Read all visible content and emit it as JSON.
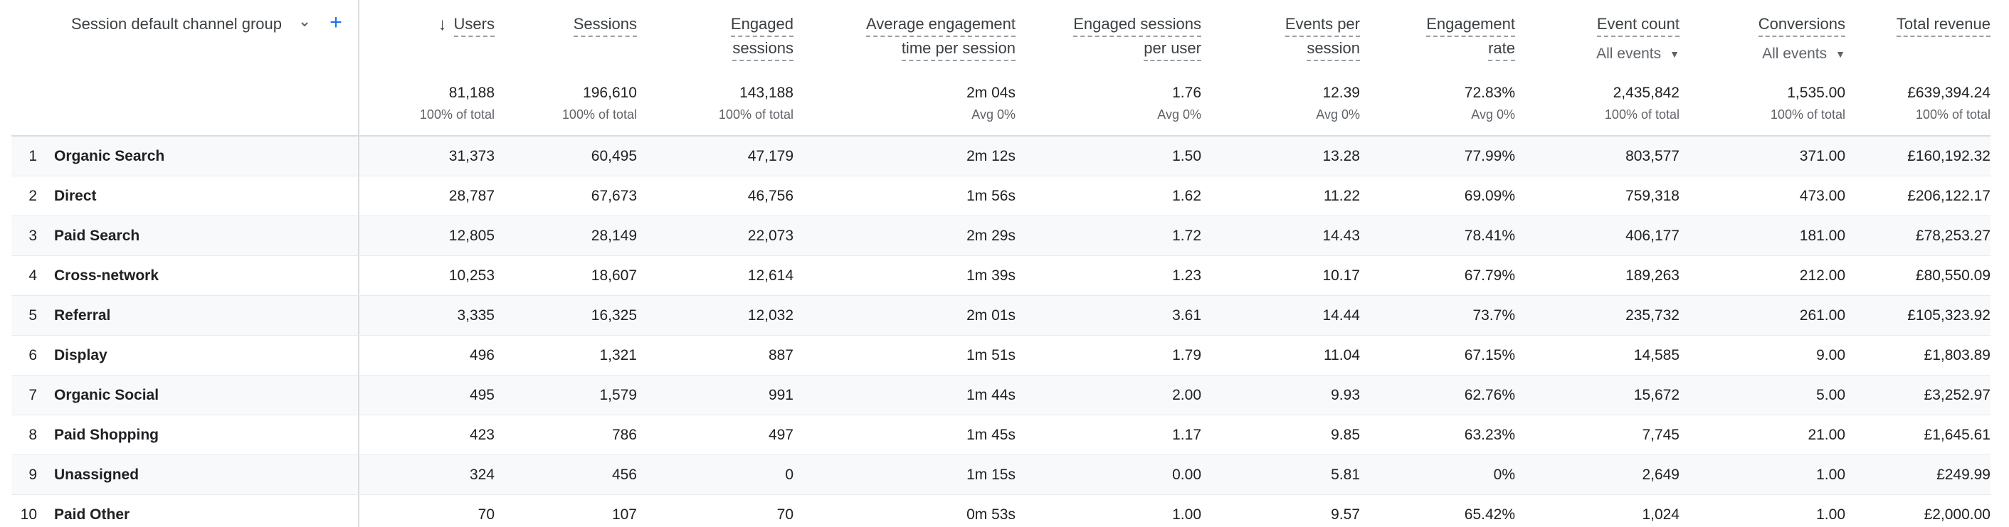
{
  "header": {
    "dimension": "Session default channel group",
    "columns": [
      {
        "label_line1": "Users",
        "label_line2": ""
      },
      {
        "label_line1": "Sessions",
        "label_line2": ""
      },
      {
        "label_line1": "Engaged",
        "label_line2": "sessions"
      },
      {
        "label_line1": "Average engagement",
        "label_line2": "time per session"
      },
      {
        "label_line1": "Engaged sessions",
        "label_line2": "per user"
      },
      {
        "label_line1": "Events per",
        "label_line2": "session"
      },
      {
        "label_line1": "Engagement",
        "label_line2": "rate"
      },
      {
        "label_line1": "Event count",
        "label_line2": "All events"
      },
      {
        "label_line1": "Conversions",
        "label_line2": "All events"
      },
      {
        "label_line1": "Total revenue",
        "label_line2": ""
      }
    ]
  },
  "totals": [
    {
      "value": "81,188",
      "sub": "100% of total"
    },
    {
      "value": "196,610",
      "sub": "100% of total"
    },
    {
      "value": "143,188",
      "sub": "100% of total"
    },
    {
      "value": "2m 04s",
      "sub": "Avg 0%"
    },
    {
      "value": "1.76",
      "sub": "Avg 0%"
    },
    {
      "value": "12.39",
      "sub": "Avg 0%"
    },
    {
      "value": "72.83%",
      "sub": "Avg 0%"
    },
    {
      "value": "2,435,842",
      "sub": "100% of total"
    },
    {
      "value": "1,535.00",
      "sub": "100% of total"
    },
    {
      "value": "£639,394.24",
      "sub": "100% of total"
    }
  ],
  "rows": [
    {
      "num": "1",
      "channel": "Organic Search",
      "users": "31,373",
      "sessions": "60,495",
      "engaged_sessions": "47,179",
      "avg_engagement": "2m 12s",
      "engaged_per_user": "1.50",
      "events_per_session": "13.28",
      "engagement_rate": "77.99%",
      "event_count": "803,577",
      "conversions": "371.00",
      "revenue": "£160,192.32"
    },
    {
      "num": "2",
      "channel": "Direct",
      "users": "28,787",
      "sessions": "67,673",
      "engaged_sessions": "46,756",
      "avg_engagement": "1m 56s",
      "engaged_per_user": "1.62",
      "events_per_session": "11.22",
      "engagement_rate": "69.09%",
      "event_count": "759,318",
      "conversions": "473.00",
      "revenue": "£206,122.17"
    },
    {
      "num": "3",
      "channel": "Paid Search",
      "users": "12,805",
      "sessions": "28,149",
      "engaged_sessions": "22,073",
      "avg_engagement": "2m 29s",
      "engaged_per_user": "1.72",
      "events_per_session": "14.43",
      "engagement_rate": "78.41%",
      "event_count": "406,177",
      "conversions": "181.00",
      "revenue": "£78,253.27"
    },
    {
      "num": "4",
      "channel": "Cross-network",
      "users": "10,253",
      "sessions": "18,607",
      "engaged_sessions": "12,614",
      "avg_engagement": "1m 39s",
      "engaged_per_user": "1.23",
      "events_per_session": "10.17",
      "engagement_rate": "67.79%",
      "event_count": "189,263",
      "conversions": "212.00",
      "revenue": "£80,550.09"
    },
    {
      "num": "5",
      "channel": "Referral",
      "users": "3,335",
      "sessions": "16,325",
      "engaged_sessions": "12,032",
      "avg_engagement": "2m 01s",
      "engaged_per_user": "3.61",
      "events_per_session": "14.44",
      "engagement_rate": "73.7%",
      "event_count": "235,732",
      "conversions": "261.00",
      "revenue": "£105,323.92"
    },
    {
      "num": "6",
      "channel": "Display",
      "users": "496",
      "sessions": "1,321",
      "engaged_sessions": "887",
      "avg_engagement": "1m 51s",
      "engaged_per_user": "1.79",
      "events_per_session": "11.04",
      "engagement_rate": "67.15%",
      "event_count": "14,585",
      "conversions": "9.00",
      "revenue": "£1,803.89"
    },
    {
      "num": "7",
      "channel": "Organic Social",
      "users": "495",
      "sessions": "1,579",
      "engaged_sessions": "991",
      "avg_engagement": "1m 44s",
      "engaged_per_user": "2.00",
      "events_per_session": "9.93",
      "engagement_rate": "62.76%",
      "event_count": "15,672",
      "conversions": "5.00",
      "revenue": "£3,252.97"
    },
    {
      "num": "8",
      "channel": "Paid Shopping",
      "users": "423",
      "sessions": "786",
      "engaged_sessions": "497",
      "avg_engagement": "1m 45s",
      "engaged_per_user": "1.17",
      "events_per_session": "9.85",
      "engagement_rate": "63.23%",
      "event_count": "7,745",
      "conversions": "21.00",
      "revenue": "£1,645.61"
    },
    {
      "num": "9",
      "channel": "Unassigned",
      "users": "324",
      "sessions": "456",
      "engaged_sessions": "0",
      "avg_engagement": "1m 15s",
      "engaged_per_user": "0.00",
      "events_per_session": "5.81",
      "engagement_rate": "0%",
      "event_count": "2,649",
      "conversions": "1.00",
      "revenue": "£249.99"
    },
    {
      "num": "10",
      "channel": "Paid Other",
      "users": "70",
      "sessions": "107",
      "engaged_sessions": "70",
      "avg_engagement": "0m 53s",
      "engaged_per_user": "1.00",
      "events_per_session": "9.57",
      "engagement_rate": "65.42%",
      "event_count": "1,024",
      "conversions": "1.00",
      "revenue": "£2,000.00"
    }
  ],
  "icons": {
    "dropdown": "chevron-down-icon",
    "add": "plus-icon",
    "sort": "arrow-down-icon"
  },
  "colors": {
    "accent": "#1a73e8",
    "header_text": "#3c4043",
    "row_stripe": "#f8f9fa",
    "border": "#dadce0"
  }
}
